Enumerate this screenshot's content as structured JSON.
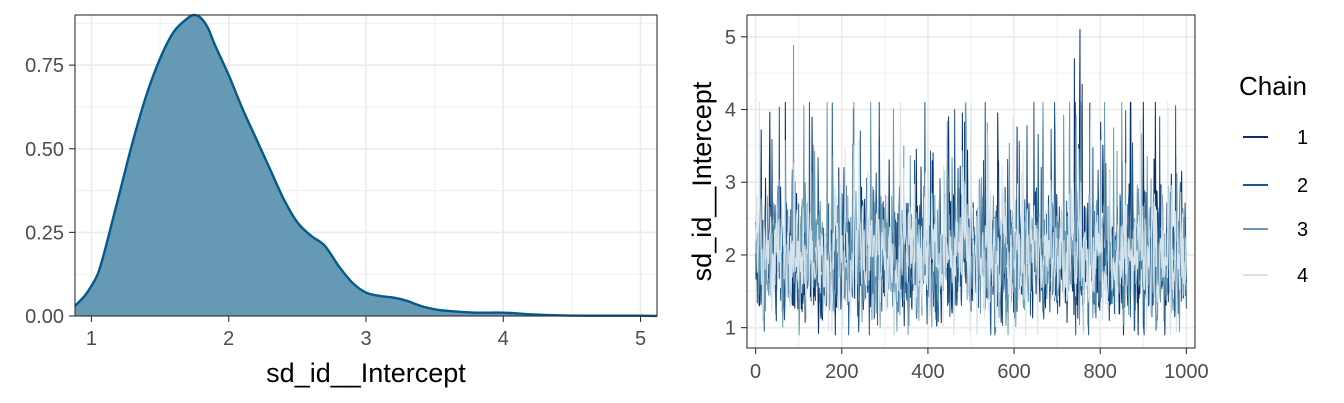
{
  "chart_data": [
    {
      "type": "area",
      "title": "",
      "xlabel": "sd_id__Intercept",
      "ylabel": "",
      "xlim": [
        0.88,
        5.12
      ],
      "ylim": [
        0,
        0.9
      ],
      "xticks": [
        1,
        2,
        3,
        4,
        5
      ],
      "xtick_labels": [
        "1",
        "2",
        "3",
        "4",
        "5"
      ],
      "yticks": [
        0,
        0.25,
        0.5,
        0.75
      ],
      "ytick_labels": [
        "0.00",
        "0.25",
        "0.50",
        "0.75"
      ],
      "grid": true,
      "colors": {
        "fill": "#6699b3",
        "line": "#045a8d"
      },
      "x": [
        0.88,
        0.95,
        1.0,
        1.05,
        1.1,
        1.15,
        1.2,
        1.3,
        1.4,
        1.5,
        1.6,
        1.7,
        1.75,
        1.8,
        1.85,
        1.9,
        2.0,
        2.1,
        2.2,
        2.3,
        2.4,
        2.5,
        2.6,
        2.7,
        2.8,
        2.9,
        3.0,
        3.1,
        3.2,
        3.3,
        3.4,
        3.5,
        3.6,
        3.8,
        4.0,
        4.2,
        4.4,
        4.6,
        4.8,
        5.0,
        5.12
      ],
      "values": [
        0.03,
        0.06,
        0.09,
        0.13,
        0.2,
        0.28,
        0.36,
        0.52,
        0.66,
        0.77,
        0.85,
        0.89,
        0.9,
        0.89,
        0.86,
        0.81,
        0.72,
        0.62,
        0.53,
        0.44,
        0.35,
        0.28,
        0.24,
        0.21,
        0.15,
        0.1,
        0.07,
        0.06,
        0.055,
        0.045,
        0.03,
        0.02,
        0.015,
        0.01,
        0.01,
        0.005,
        0.002,
        0.001,
        0.001,
        0.001,
        0.0
      ]
    },
    {
      "type": "line",
      "title": "",
      "xlabel": "",
      "ylabel": "sd_id__Intercept",
      "xlim": [
        -20,
        1020
      ],
      "ylim": [
        0.72,
        5.3
      ],
      "xticks": [
        0,
        200,
        400,
        600,
        800,
        1000
      ],
      "xtick_labels": [
        "0",
        "200",
        "400",
        "600",
        "800",
        "1000"
      ],
      "yticks": [
        1,
        2,
        3,
        4,
        5
      ],
      "ytick_labels": [
        "1",
        "2",
        "3",
        "4",
        "5"
      ],
      "grid": true,
      "legend": {
        "title": "Chain",
        "position": "right"
      },
      "series": [
        {
          "name": "1",
          "color": "#08306b",
          "draw_order": 1
        },
        {
          "name": "2",
          "color": "#1f5a8e",
          "draw_order": 2
        },
        {
          "name": "3",
          "color": "#6a9ab2",
          "draw_order": 3
        },
        {
          "name": "4",
          "color": "#d4e3ec",
          "draw_order": 4
        }
      ],
      "iterations": [
        0,
        1000
      ],
      "center": 1.95,
      "spread": 0.42,
      "min": 0.9,
      "max": 4.1,
      "peaks": [
        {
          "series": "1",
          "iter": 740,
          "value": 4.7
        },
        {
          "series": "1",
          "iter": 753,
          "value": 5.1
        },
        {
          "series": "1",
          "iter": 758,
          "value": 4.35
        },
        {
          "series": "3",
          "iter": 88,
          "value": 4.88
        },
        {
          "series": "3",
          "iter": 112,
          "value": 4.05
        },
        {
          "series": "2",
          "iter": 975,
          "value": 4.05
        },
        {
          "series": "2",
          "iter": 938,
          "value": 3.9
        },
        {
          "series": "1",
          "iter": 480,
          "value": 3.95
        }
      ]
    }
  ]
}
